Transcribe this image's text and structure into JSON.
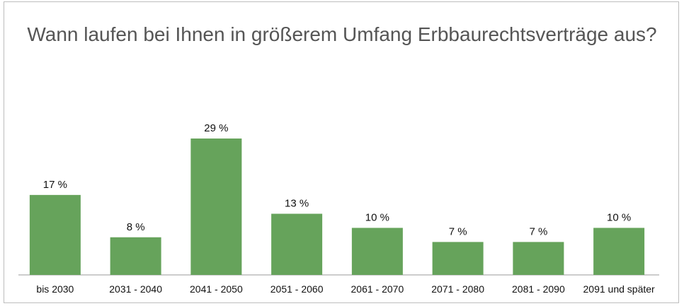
{
  "chart_data": {
    "type": "bar",
    "title": "Wann laufen bei Ihnen in größerem Umfang Erbbaurechtsverträge aus?",
    "xlabel": "",
    "ylabel": "",
    "categories": [
      "bis 2030",
      "2031 - 2040",
      "2041 - 2050",
      "2051 - 2060",
      "2061 - 2070",
      "2071 - 2080",
      "2081 - 2090",
      "2091 und später"
    ],
    "values": [
      17,
      8,
      29,
      13,
      10,
      7,
      7,
      10
    ],
    "value_labels": [
      "17 %",
      "8 %",
      "29 %",
      "13 %",
      "10 %",
      "7 %",
      "7 %",
      "10 %"
    ],
    "unit": "%",
    "ylim": [
      0,
      29
    ],
    "grid": false,
    "legend": "none",
    "bar_color": "#66a35b",
    "axis_color": "#999999"
  }
}
